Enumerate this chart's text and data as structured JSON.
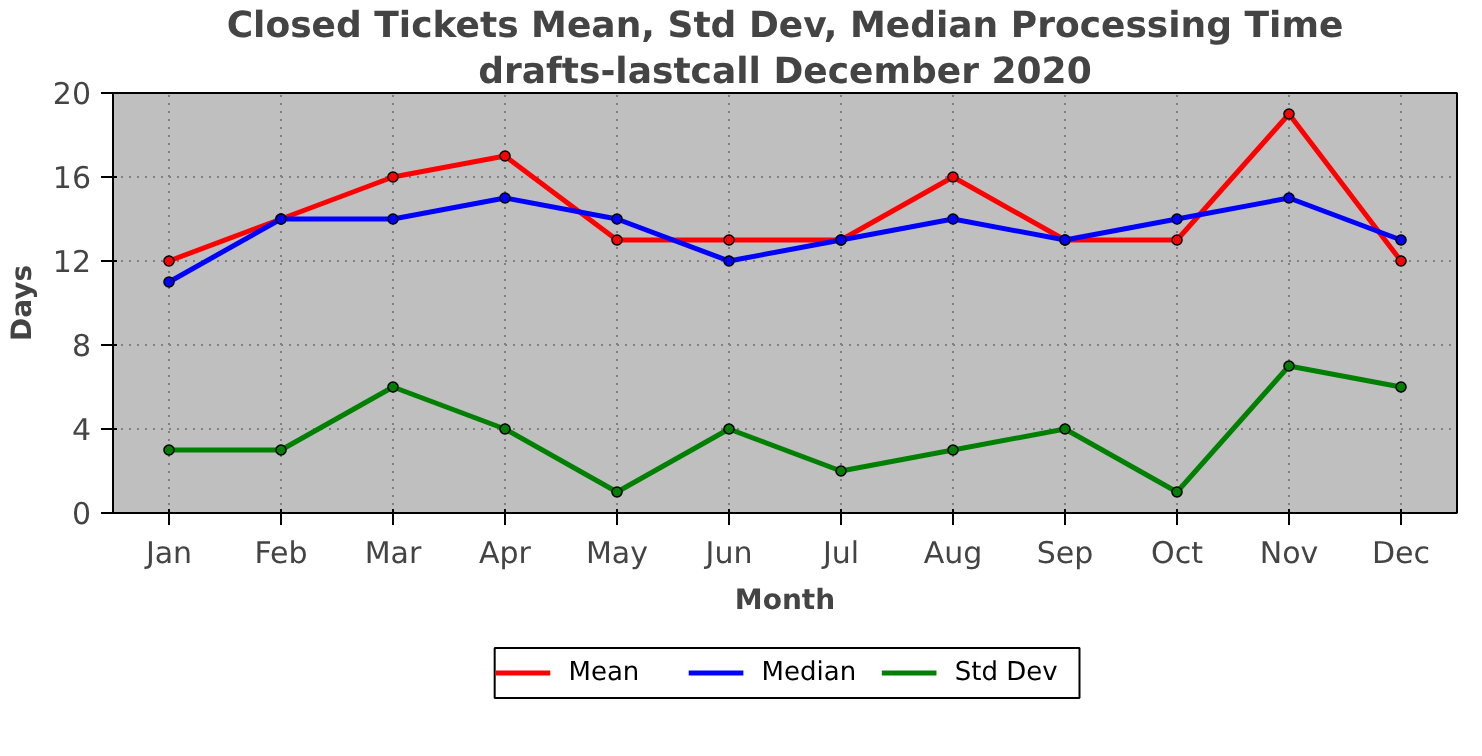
{
  "chart_data": {
    "type": "line",
    "title": "Closed Tickets Mean, Std Dev, Median Processing Time",
    "subtitle": "drafts-lastcall December 2020",
    "xlabel": "Month",
    "ylabel": "Days",
    "categories": [
      "Jan",
      "Feb",
      "Mar",
      "Apr",
      "May",
      "Jun",
      "Jul",
      "Aug",
      "Sep",
      "Oct",
      "Nov",
      "Dec"
    ],
    "series": [
      {
        "name": "Mean",
        "color": "#ff0000",
        "values": [
          12,
          14,
          16,
          17,
          13,
          13,
          13,
          16,
          13,
          13,
          19,
          12
        ]
      },
      {
        "name": "Median",
        "color": "#0000ff",
        "values": [
          11,
          14,
          14,
          15,
          14,
          12,
          13,
          14,
          13,
          14,
          15,
          13
        ]
      },
      {
        "name": "Std Dev",
        "color": "#008000",
        "values": [
          3,
          3,
          6,
          4,
          1,
          4,
          2,
          3,
          4,
          1,
          7,
          6
        ]
      }
    ],
    "ylim": [
      0,
      20
    ],
    "yticks": [
      0,
      4,
      8,
      12,
      16,
      20
    ],
    "grid": true,
    "legend": "bottom",
    "marker": "circle",
    "line_style": "solid"
  }
}
